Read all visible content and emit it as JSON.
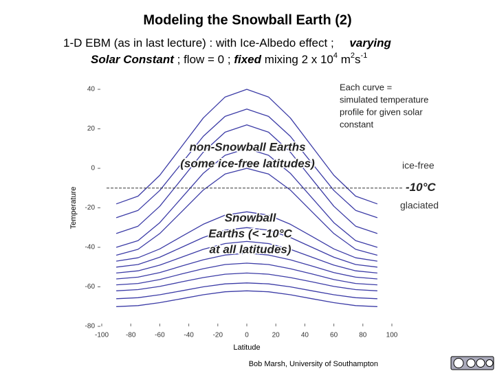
{
  "slide": {
    "title": "Modeling the Snowball Earth (2)",
    "subtitle_line1": [
      "1-D EBM (as in last lecture) : with Ice-Albedo effect ;",
      "varying"
    ],
    "subtitle_line2": [
      "Solar Constant",
      " ; flow = 0 ; ",
      "fixed",
      " mixing 2 x 10",
      "4",
      " m",
      "2",
      "s",
      "-1"
    ],
    "credit": "Bob Marsh, University of Southampton"
  },
  "chart_data": {
    "type": "line",
    "xlabel": "Latitude",
    "ylabel": "Temperature",
    "x": [
      -90,
      -75,
      -60,
      -45,
      -30,
      -15,
      0,
      15,
      30,
      45,
      60,
      75,
      90
    ],
    "xlim": [
      -100,
      100
    ],
    "xticks": [
      -100,
      -80,
      -60,
      -40,
      -20,
      0,
      20,
      40,
      60,
      80,
      100
    ],
    "ylim": [
      -80,
      40
    ],
    "yticks": [
      40,
      20,
      0,
      -20,
      -40,
      -60,
      -80
    ],
    "threshold": {
      "value": -10,
      "label": "-10°C"
    },
    "annotations": {
      "note": [
        "Each curve =",
        "simulated temperature",
        "profile for given solar",
        "constant"
      ],
      "ice_free": "ice-free",
      "glaciated": "glaciated",
      "non_snowball": [
        "non-Snowball Earths",
        "(some ice-free latitudes)"
      ],
      "snowball": [
        "Snowball",
        "Earths (< -10°C",
        "at all latitudes)"
      ]
    },
    "series": [
      {
        "color": "#3b3ba6",
        "values": [
          -18,
          -14.1,
          -3.5,
          11,
          25.5,
          36.1,
          40,
          36.1,
          25.5,
          11,
          -3.5,
          -14.1,
          -18
        ]
      },
      {
        "color": "#3b3ba6",
        "values": [
          -25,
          -21.3,
          -11.2,
          2.5,
          16.2,
          26.3,
          30,
          26.3,
          16.2,
          2.5,
          -11.2,
          -21.3,
          -25
        ]
      },
      {
        "color": "#3b3ba6",
        "values": [
          -33,
          -29.3,
          -19.2,
          -5.5,
          8.2,
          18.3,
          22,
          18.3,
          8.2,
          -5.5,
          -19.2,
          -29.3,
          -33
        ]
      },
      {
        "color": "#3b3ba6",
        "values": [
          -40,
          -36.6,
          -27.5,
          -15,
          -2.5,
          6.6,
          10,
          6.6,
          -2.5,
          -15,
          -27.5,
          -36.6,
          -40
        ]
      },
      {
        "color": "#3b3ba6",
        "values": [
          -44,
          -41,
          -33,
          -22,
          -11,
          -2.9,
          0,
          -2.9,
          -11,
          -22,
          -33,
          -41,
          -44
        ]
      },
      {
        "color": "#3b3ba6",
        "values": [
          -47,
          -45.3,
          -40.8,
          -34.5,
          -28.3,
          -23.7,
          -22,
          -23.7,
          -28.3,
          -34.5,
          -40.8,
          -45.3,
          -47
        ]
      },
      {
        "color": "#3b3ba6",
        "values": [
          -50,
          -48.7,
          -45,
          -40,
          -35,
          -31.3,
          -30,
          -31.3,
          -35,
          -40,
          -45,
          -48.7,
          -50
        ]
      },
      {
        "color": "#3b3ba6",
        "values": [
          -53,
          -51.9,
          -49,
          -45,
          -41,
          -38.1,
          -37,
          -38.1,
          -41,
          -45,
          -49,
          -51.9,
          -53
        ]
      },
      {
        "color": "#3b3ba6",
        "values": [
          -56,
          -55.1,
          -52.8,
          -49.5,
          -46.3,
          -43.9,
          -43,
          -43.9,
          -46.3,
          -49.5,
          -52.8,
          -55.1,
          -56
        ]
      },
      {
        "color": "#3b3ba6",
        "values": [
          -59,
          -58.3,
          -56.3,
          -53.5,
          -50.8,
          -48.7,
          -48,
          -48.7,
          -50.8,
          -53.5,
          -56.3,
          -58.3,
          -59
        ]
      },
      {
        "color": "#3b3ba6",
        "values": [
          -62,
          -61.4,
          -59.8,
          -57.5,
          -55.3,
          -53.6,
          -53,
          -53.6,
          -55.3,
          -57.5,
          -59.8,
          -61.4,
          -62
        ]
      },
      {
        "color": "#3b3ba6",
        "values": [
          -66,
          -65.5,
          -64,
          -62,
          -60,
          -58.5,
          -58,
          -58.5,
          -60,
          -62,
          -64,
          -65.5,
          -66
        ]
      },
      {
        "color": "#3b3ba6",
        "values": [
          -70,
          -69.5,
          -68,
          -66,
          -64,
          -62.5,
          -62,
          -62.5,
          -64,
          -66,
          -68,
          -69.5,
          -70
        ]
      }
    ]
  }
}
